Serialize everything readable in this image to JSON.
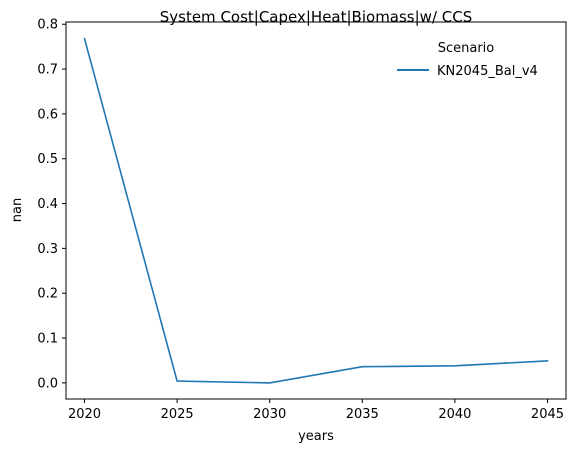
{
  "chart_data": {
    "type": "line",
    "title": "System Cost|Capex|Heat|Biomass|w/ CCS",
    "xlabel": "years",
    "ylabel": "nan",
    "x": [
      2020,
      2025,
      2030,
      2035,
      2040,
      2045
    ],
    "xticks": [
      "2020",
      "2025",
      "2030",
      "2035",
      "2040",
      "2045"
    ],
    "yticks": [
      "0.0",
      "0.1",
      "0.2",
      "0.3",
      "0.4",
      "0.5",
      "0.6",
      "0.7",
      "0.8"
    ],
    "xlim": [
      2019.0,
      2046.0
    ],
    "ylim": [
      -0.036,
      0.805
    ],
    "grid": false,
    "legend": {
      "title": "Scenario",
      "placement": "top-right"
    },
    "series": [
      {
        "name": "KN2045_Bal_v4",
        "color": "#1f77b4",
        "values": [
          0.768,
          0.004,
          0.0,
          0.036,
          0.038,
          0.049
        ]
      }
    ]
  }
}
